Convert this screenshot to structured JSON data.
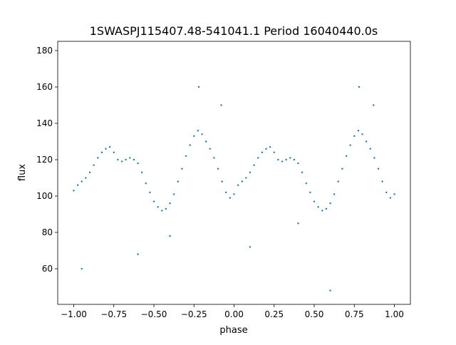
{
  "chart_data": {
    "type": "scatter",
    "title": "1SWASPJ115407.48-541041.1 Period 16040440.0s",
    "xlabel": "phase",
    "ylabel": "flux",
    "xlim": [
      -1.1,
      1.1
    ],
    "ylim": [
      40.4,
      185.1
    ],
    "grid": false,
    "xticks": [
      -1.0,
      -0.75,
      -0.5,
      -0.25,
      0.0,
      0.25,
      0.5,
      0.75,
      1.0
    ],
    "xtick_labels": [
      "−1.00",
      "−0.75",
      "−0.50",
      "−0.25",
      "0.00",
      "0.25",
      "0.50",
      "0.75",
      "1.00"
    ],
    "yticks": [
      60,
      80,
      100,
      120,
      140,
      160,
      180
    ],
    "ytick_labels": [
      "60",
      "80",
      "100",
      "120",
      "140",
      "160",
      "180"
    ],
    "color": "#1f77b4",
    "series": [
      {
        "name": "flux",
        "x": [
          -1.0,
          -0.975,
          -0.95,
          -0.925,
          -0.9,
          -0.875,
          -0.85,
          -0.825,
          -0.8,
          -0.775,
          -0.75,
          -0.725,
          -0.7,
          -0.675,
          -0.65,
          -0.625,
          -0.6,
          -0.575,
          -0.55,
          -0.525,
          -0.5,
          -0.475,
          -0.45,
          -0.425,
          -0.4,
          -0.375,
          -0.35,
          -0.325,
          -0.3,
          -0.275,
          -0.25,
          -0.225,
          -0.2,
          -0.175,
          -0.15,
          -0.125,
          -0.1,
          -0.075,
          -0.05,
          -0.025,
          0.0,
          0.025,
          0.05,
          0.075,
          0.1,
          0.125,
          0.15,
          0.175,
          0.2,
          0.225,
          0.25,
          0.275,
          0.3,
          0.325,
          0.35,
          0.375,
          0.4,
          0.425,
          0.45,
          0.475,
          0.5,
          0.525,
          0.55,
          0.575,
          0.6,
          0.625,
          0.65,
          0.675,
          0.7,
          0.725,
          0.75,
          0.775,
          0.8,
          0.825,
          0.85,
          0.875,
          0.9,
          0.925,
          0.95,
          0.975,
          1.0,
          -0.22,
          -0.08,
          0.78,
          0.87,
          -0.95,
          0.6,
          -0.4,
          0.1,
          -0.6,
          0.4
        ],
        "y": [
          103,
          106,
          108,
          110,
          113,
          117,
          121,
          124,
          126,
          127,
          124,
          120,
          119,
          120,
          121,
          120,
          118,
          113,
          107,
          102,
          97,
          94,
          92,
          93,
          96,
          101,
          108,
          115,
          122,
          128,
          133,
          136,
          134,
          130,
          126,
          121,
          115,
          108,
          102,
          99,
          101,
          106,
          108,
          110,
          113,
          117,
          121,
          124,
          126,
          127,
          124,
          120,
          119,
          120,
          121,
          120,
          118,
          113,
          107,
          102,
          97,
          94,
          92,
          93,
          96,
          101,
          108,
          115,
          122,
          128,
          133,
          136,
          134,
          130,
          126,
          121,
          115,
          108,
          102,
          99,
          101,
          160,
          150,
          160,
          150,
          60,
          48,
          78,
          72,
          68,
          85
        ]
      }
    ]
  }
}
